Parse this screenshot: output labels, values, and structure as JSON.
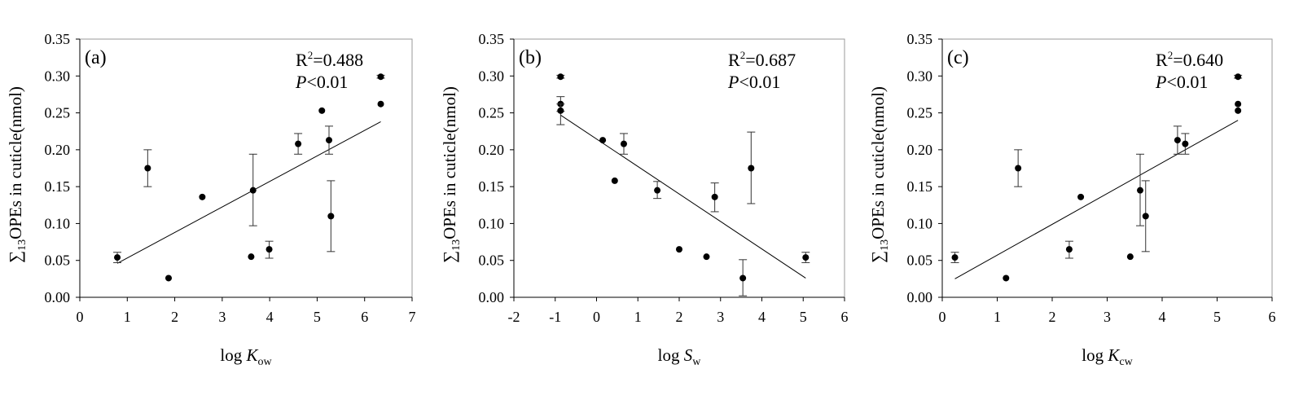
{
  "chart_data": [
    {
      "type": "scatter",
      "panel_label": "(a)",
      "ylabel_sigma": "∑",
      "ylabel_sub": "13",
      "ylabel_rest": "OPEs in cuticle(nmol)",
      "xlabel_prefix": "log ",
      "xlabel_var": "K",
      "xlabel_sub": "ow",
      "xlim": [
        0,
        7
      ],
      "xticks": [
        0,
        1,
        2,
        3,
        4,
        5,
        6,
        7
      ],
      "ylim": [
        0,
        0.35
      ],
      "yticks": [
        "0.00",
        "0.05",
        "0.10",
        "0.15",
        "0.20",
        "0.25",
        "0.30",
        "0.35"
      ],
      "r2_label": "R",
      "r2_sup": "2",
      "r2_value": "=0.488",
      "p_var": "P",
      "p_value": "<0.01",
      "points": [
        {
          "x": 0.79,
          "y": 0.054,
          "lo": 0.047,
          "hi": 0.061
        },
        {
          "x": 1.43,
          "y": 0.175,
          "lo": 0.15,
          "hi": 0.2
        },
        {
          "x": 1.87,
          "y": 0.026
        },
        {
          "x": 2.58,
          "y": 0.136
        },
        {
          "x": 3.61,
          "y": 0.055
        },
        {
          "x": 3.65,
          "y": 0.145,
          "lo": 0.097,
          "hi": 0.194
        },
        {
          "x": 3.99,
          "y": 0.065,
          "lo": 0.053,
          "hi": 0.076
        },
        {
          "x": 4.6,
          "y": 0.208,
          "lo": 0.194,
          "hi": 0.222
        },
        {
          "x": 5.1,
          "y": 0.253
        },
        {
          "x": 5.25,
          "y": 0.213,
          "lo": 0.194,
          "hi": 0.232
        },
        {
          "x": 5.29,
          "y": 0.11,
          "lo": 0.062,
          "hi": 0.158
        },
        {
          "x": 6.34,
          "y": 0.262
        },
        {
          "x": 6.34,
          "y": 0.299,
          "lo": 0.297,
          "hi": 0.301
        }
      ],
      "fit": [
        [
          0.79,
          0.046
        ],
        [
          6.34,
          0.238
        ]
      ]
    },
    {
      "type": "scatter",
      "panel_label": "(b)",
      "ylabel_sigma": "∑",
      "ylabel_sub": "13",
      "ylabel_rest": "OPEs in cuticle(nmol)",
      "xlabel_prefix": "log ",
      "xlabel_var": "S",
      "xlabel_sub": "w",
      "xlim": [
        -2,
        6
      ],
      "xticks": [
        -2,
        -1,
        0,
        1,
        2,
        3,
        4,
        5,
        6
      ],
      "ylim": [
        0,
        0.35
      ],
      "yticks": [
        "0.00",
        "0.05",
        "0.10",
        "0.15",
        "0.20",
        "0.25",
        "0.30",
        "0.35"
      ],
      "r2_label": "R",
      "r2_sup": "2",
      "r2_value": "=0.687",
      "p_var": "P",
      "p_value": "<0.01",
      "points": [
        {
          "x": -0.87,
          "y": 0.299,
          "lo": 0.297,
          "hi": 0.301
        },
        {
          "x": -0.87,
          "y": 0.262,
          "lo": 0.252,
          "hi": 0.272
        },
        {
          "x": -0.87,
          "y": 0.253,
          "lo": 0.234,
          "hi": 0.262
        },
        {
          "x": 0.15,
          "y": 0.213
        },
        {
          "x": 0.44,
          "y": 0.158
        },
        {
          "x": 0.66,
          "y": 0.208,
          "lo": 0.194,
          "hi": 0.222
        },
        {
          "x": 1.47,
          "y": 0.145,
          "lo": 0.134,
          "hi": 0.157
        },
        {
          "x": 2.0,
          "y": 0.065
        },
        {
          "x": 2.66,
          "y": 0.055
        },
        {
          "x": 2.86,
          "y": 0.136,
          "lo": 0.116,
          "hi": 0.155
        },
        {
          "x": 3.54,
          "y": 0.026,
          "lo": 0.002,
          "hi": 0.051
        },
        {
          "x": 3.74,
          "y": 0.175,
          "lo": 0.127,
          "hi": 0.224
        },
        {
          "x": 5.06,
          "y": 0.054,
          "lo": 0.047,
          "hi": 0.061
        }
      ],
      "fit": [
        [
          -0.87,
          0.247
        ],
        [
          5.06,
          0.026
        ]
      ]
    },
    {
      "type": "scatter",
      "panel_label": "(c)",
      "ylabel_sigma": "∑",
      "ylabel_sub": "13",
      "ylabel_rest": "OPEs in cuticle(nmol)",
      "xlabel_prefix": "log ",
      "xlabel_var": "K",
      "xlabel_sub": "cw",
      "xlim": [
        0,
        6
      ],
      "xticks": [
        0,
        1,
        2,
        3,
        4,
        5,
        6
      ],
      "ylim": [
        0,
        0.35
      ],
      "yticks": [
        "0.00",
        "0.05",
        "0.10",
        "0.15",
        "0.20",
        "0.25",
        "0.30",
        "0.35"
      ],
      "r2_label": "R",
      "r2_sup": "2",
      "r2_value": "=0.640",
      "p_var": "P",
      "p_value": "<0.01",
      "points": [
        {
          "x": 0.23,
          "y": 0.054,
          "lo": 0.047,
          "hi": 0.061
        },
        {
          "x": 1.16,
          "y": 0.026
        },
        {
          "x": 1.38,
          "y": 0.175,
          "lo": 0.15,
          "hi": 0.2
        },
        {
          "x": 2.31,
          "y": 0.065,
          "lo": 0.053,
          "hi": 0.076
        },
        {
          "x": 2.52,
          "y": 0.136
        },
        {
          "x": 3.42,
          "y": 0.055
        },
        {
          "x": 3.6,
          "y": 0.145,
          "lo": 0.097,
          "hi": 0.194
        },
        {
          "x": 3.7,
          "y": 0.11,
          "lo": 0.062,
          "hi": 0.158
        },
        {
          "x": 4.28,
          "y": 0.213,
          "lo": 0.194,
          "hi": 0.232
        },
        {
          "x": 4.42,
          "y": 0.208,
          "lo": 0.194,
          "hi": 0.222
        },
        {
          "x": 5.38,
          "y": 0.253
        },
        {
          "x": 5.38,
          "y": 0.262
        },
        {
          "x": 5.38,
          "y": 0.299,
          "lo": 0.297,
          "hi": 0.301
        }
      ],
      "fit": [
        [
          0.23,
          0.025
        ],
        [
          5.38,
          0.24
        ]
      ]
    }
  ]
}
